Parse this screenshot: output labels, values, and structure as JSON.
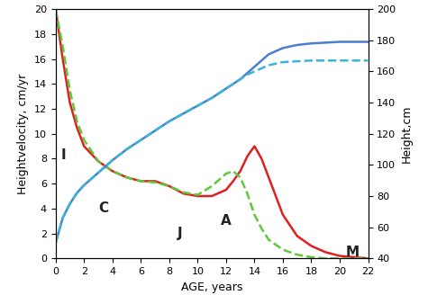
{
  "chart_data": {
    "type": "line",
    "xlabel": "AGE, years",
    "ylabel": "Heightvelocity, cm/yr",
    "y2label": "Height,cm",
    "annotations": [
      "I",
      "C",
      "J",
      "A",
      "M"
    ],
    "x": [
      0,
      0.5,
      1,
      1.5,
      2,
      3,
      4,
      5,
      6,
      7,
      8,
      9,
      10,
      11,
      12,
      12.5,
      13,
      13.5,
      14,
      14.5,
      15,
      16,
      17,
      18,
      19,
      20,
      21,
      22
    ],
    "xlim": [
      0,
      22
    ],
    "xticks": [
      0,
      2,
      4,
      6,
      8,
      10,
      12,
      14,
      16,
      18,
      20,
      22
    ],
    "ylim": [
      0,
      20
    ],
    "yticks": [
      0,
      2,
      4,
      6,
      8,
      10,
      12,
      14,
      16,
      18,
      20
    ],
    "y2lim": [
      40,
      200
    ],
    "y2ticks": [
      40,
      60,
      80,
      100,
      120,
      140,
      160,
      180,
      200
    ],
    "grid": false,
    "series": [
      {
        "color": "#e02020",
        "line_style": "solid",
        "values": [
          20,
          16,
          12.5,
          10.5,
          9,
          7.8,
          7,
          6.5,
          6.2,
          6.2,
          5.8,
          5.2,
          5,
          5,
          5.5,
          6.2,
          7,
          8.2,
          9,
          8,
          6.5,
          3.5,
          1.8,
          1,
          0.5,
          0.2,
          0.1,
          0
        ]
      },
      {
        "color": "#5cc83c",
        "line_style": "dashed",
        "values": [
          20,
          17,
          13.5,
          11,
          9.5,
          7.8,
          7,
          6.5,
          6.2,
          6.1,
          5.8,
          5.3,
          5.1,
          5.8,
          6.8,
          7,
          6.5,
          5.2,
          3.5,
          2.4,
          1.5,
          0.7,
          0.3,
          0.1,
          0,
          0,
          0,
          0
        ]
      },
      {
        "color": "#4a7fd0",
        "line_style": "solid",
        "axis": "y2",
        "values": [
          50,
          66,
          75,
          82,
          87,
          95,
          103,
          110,
          116,
          122,
          128,
          133,
          138,
          143,
          149,
          152,
          155,
          159,
          163,
          167,
          171,
          175,
          177,
          178,
          178.5,
          179,
          179,
          179
        ]
      },
      {
        "color": "#3cb4d8",
        "line_style": "dashed",
        "axis": "y2",
        "values": [
          50,
          66,
          75,
          82,
          87,
          95,
          103,
          110,
          116,
          122,
          128,
          133,
          138,
          143,
          149,
          152,
          155,
          158,
          160,
          162,
          164,
          166,
          166.5,
          167,
          167,
          167,
          167,
          167
        ]
      }
    ]
  }
}
